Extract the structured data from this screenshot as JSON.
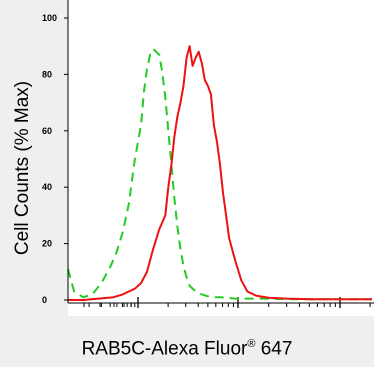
{
  "chart_data": {
    "type": "line",
    "ylabel": "Cell Counts (% Max)",
    "xlabel": {
      "prefix": "RAB5C-Alexa Fluor",
      "superscript": "®",
      "suffix": " 647"
    },
    "y_ticks": [
      "0",
      "20",
      "40",
      "60",
      "80",
      "100"
    ],
    "ylim": [
      0,
      100
    ],
    "x_scale": "log",
    "x_tick_labels": [],
    "legend": "none",
    "grid": false,
    "series": [
      {
        "color": "#22cc22",
        "style": "dashed",
        "x": [
          0.0,
          0.02,
          0.05,
          0.08,
          0.11,
          0.14,
          0.16,
          0.18,
          0.2,
          0.22,
          0.24,
          0.25,
          0.26,
          0.27,
          0.28,
          0.29,
          0.3,
          0.31,
          0.32,
          0.33,
          0.34,
          0.35,
          0.36,
          0.37,
          0.38,
          0.39,
          0.4,
          0.42,
          0.44,
          0.47,
          0.5,
          0.55,
          0.62,
          0.75,
          1.0
        ],
        "y": [
          11,
          3,
          1,
          2,
          6,
          12,
          17,
          24,
          34,
          50,
          62,
          74,
          82,
          87,
          89,
          88,
          87,
          81,
          72,
          60,
          48,
          36,
          26,
          18,
          12,
          8,
          5,
          3,
          2,
          1,
          1,
          0.5,
          0.5,
          0.3,
          0.3
        ]
      },
      {
        "color": "#ee1111",
        "style": "solid",
        "x": [
          0.0,
          0.05,
          0.1,
          0.15,
          0.18,
          0.2,
          0.22,
          0.24,
          0.26,
          0.28,
          0.3,
          0.32,
          0.33,
          0.34,
          0.35,
          0.36,
          0.37,
          0.38,
          0.39,
          0.4,
          0.41,
          0.42,
          0.43,
          0.44,
          0.45,
          0.46,
          0.47,
          0.48,
          0.49,
          0.5,
          0.51,
          0.52,
          0.53,
          0.55,
          0.57,
          0.59,
          0.62,
          0.66,
          0.72,
          0.8,
          1.0
        ],
        "y": [
          0,
          0,
          0.5,
          1,
          2,
          3,
          4,
          6,
          10,
          18,
          25,
          30,
          40,
          48,
          58,
          65,
          70,
          76,
          86,
          90,
          83,
          86,
          88,
          84,
          78,
          76,
          73,
          62,
          56,
          48,
          38,
          30,
          22,
          14,
          7,
          3,
          1.5,
          0.8,
          0.5,
          0.3,
          0.3
        ]
      }
    ]
  }
}
